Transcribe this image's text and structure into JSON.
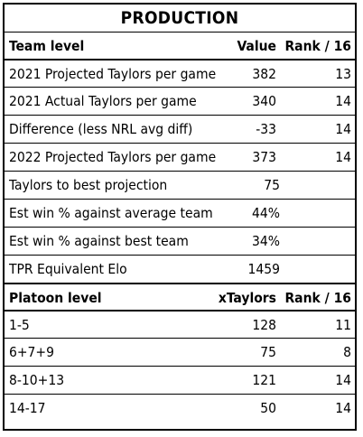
{
  "title": "PRODUCTION",
  "team": {
    "header": {
      "label": "Team level",
      "value": "Value",
      "rank": "Rank / 16"
    },
    "rows": [
      {
        "label": "2021 Projected Taylors per game",
        "value": "382",
        "rank": "13"
      },
      {
        "label": "2021 Actual Taylors per game",
        "value": "340",
        "rank": "14"
      },
      {
        "label": "Difference (less NRL avg diff)",
        "value": "-33",
        "rank": "14"
      },
      {
        "label": "2022 Projected Taylors per game",
        "value": "373",
        "rank": "14"
      },
      {
        "label": "Taylors to best projection",
        "value": "75",
        "rank": ""
      },
      {
        "label": "Est win % against average team",
        "value": "44%",
        "rank": ""
      },
      {
        "label": "Est win % against best team",
        "value": "34%",
        "rank": ""
      },
      {
        "label": "TPR Equivalent Elo",
        "value": "1459",
        "rank": ""
      }
    ]
  },
  "platoon": {
    "header": {
      "label": "Platoon level",
      "value": "xTaylors",
      "rank": "Rank / 16"
    },
    "rows": [
      {
        "label": "1-5",
        "value": "128",
        "rank": "11"
      },
      {
        "label": "6+7+9",
        "value": "75",
        "rank": "8"
      },
      {
        "label": "8-10+13",
        "value": "121",
        "rank": "14"
      },
      {
        "label": "14-17",
        "value": "50",
        "rank": "14"
      }
    ]
  }
}
